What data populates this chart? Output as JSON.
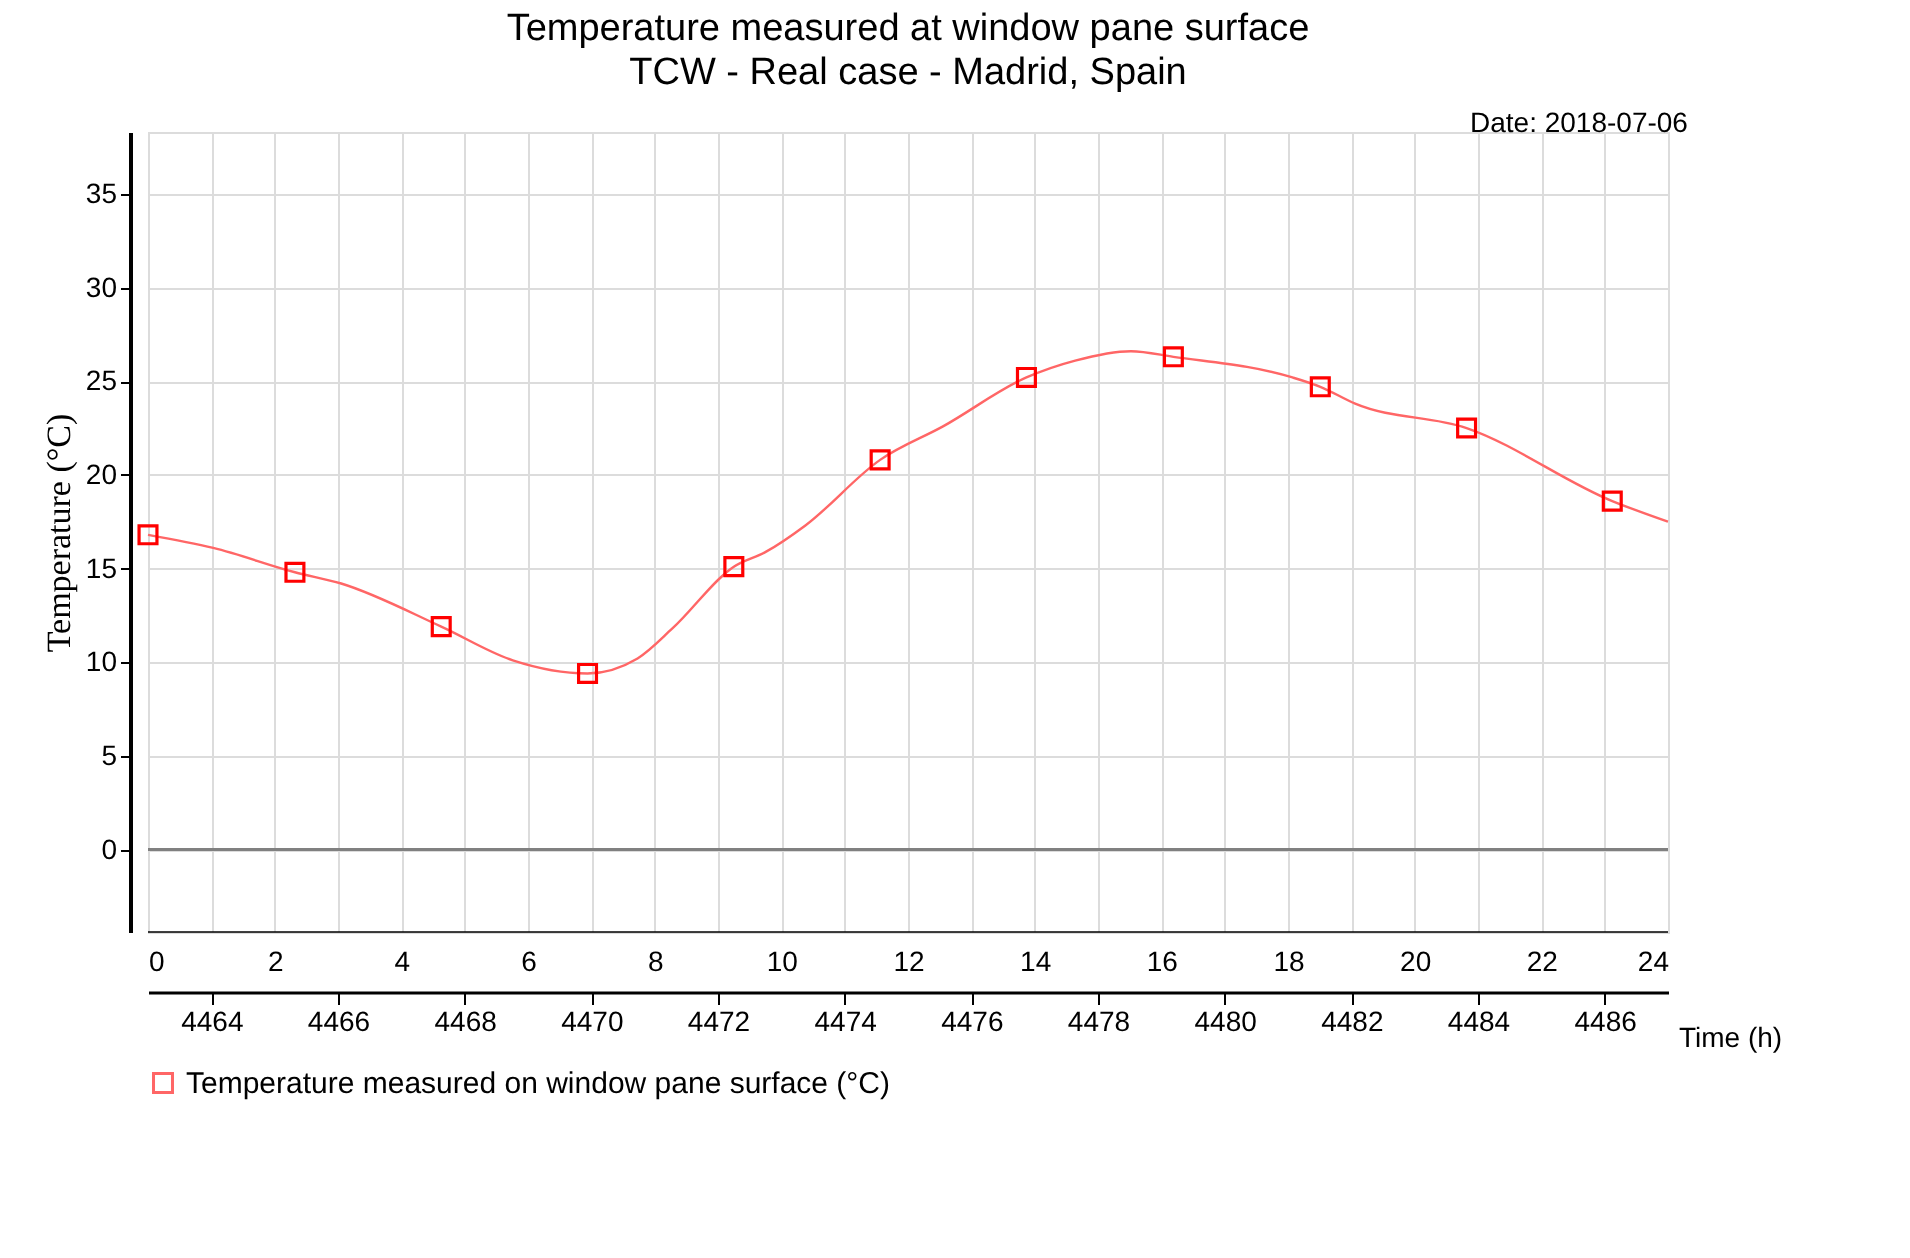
{
  "chart_data": {
    "type": "line",
    "title": "Temperature measured at window pane surface",
    "subtitle": "TCW - Real case - Madrid, Spain",
    "xlabel": "Time (h)",
    "ylabel": "Temperature (°C)",
    "annotations": [
      "Date: 2018-07-06"
    ],
    "xlim": [
      0,
      24
    ],
    "xticks": [
      0,
      {
        "value": 1,
        "label": null
      },
      2,
      {
        "value": 3,
        "label": null
      },
      4,
      {
        "value": 5,
        "label": null
      },
      6,
      {
        "value": 7,
        "label": null
      },
      8,
      {
        "value": 9,
        "label": null
      },
      10,
      {
        "value": 11,
        "label": null
      },
      12,
      {
        "value": 13,
        "label": null
      },
      14,
      {
        "value": 15,
        "label": null
      },
      16,
      {
        "value": 17,
        "label": null
      },
      18,
      {
        "value": 19,
        "label": null
      },
      20,
      {
        "value": 21,
        "label": null
      },
      22,
      {
        "value": 23,
        "label": null
      },
      24
    ],
    "x2lim": [
      4463,
      4487
    ],
    "x2ticks": [
      4464,
      4466,
      4468,
      4470,
      4472,
      4474,
      4476,
      4478,
      4480,
      4482,
      4484,
      4486
    ],
    "ylim": [
      -4.4,
      38.3
    ],
    "yticks": [
      0,
      5,
      10,
      15,
      20,
      25,
      30,
      35
    ],
    "grid": true,
    "legend": "bottom",
    "ref_lines": [
      {
        "axis": "y",
        "value": 0,
        "color": "#808080"
      }
    ],
    "series": [
      {
        "name": "Temperature measured on window pane surface (°C)",
        "color": "#ff6666",
        "x": [
          0,
          1.03,
          2.32,
          3.05,
          4.63,
          5.76,
          6.94,
          7.73,
          8.28,
          9.25,
          9.76,
          10.38,
          11.56,
          12.56,
          13.87,
          14.64,
          15.52,
          16.19,
          18.07,
          18.51,
          19.06,
          20.82,
          23.12,
          24
        ],
        "values": [
          16.8,
          16.1,
          14.8,
          14.2,
          11.9,
          10.1,
          9.4,
          10.2,
          11.8,
          15.1,
          15.9,
          17.3,
          20.8,
          22.6,
          25.2,
          26.1,
          26.6,
          26.3,
          25.2,
          24.7,
          23.8,
          22.5,
          18.6,
          17.5
        ]
      },
      {
        "type": "scatter",
        "marker": "square",
        "color": "#ff0000",
        "x": [
          0,
          2.32,
          4.63,
          6.94,
          9.25,
          11.56,
          13.87,
          16.19,
          18.51,
          20.82,
          23.12
        ],
        "values": [
          16.8,
          14.8,
          11.9,
          9.4,
          15.1,
          20.8,
          25.2,
          26.3,
          24.7,
          22.5,
          18.6
        ]
      }
    ]
  }
}
